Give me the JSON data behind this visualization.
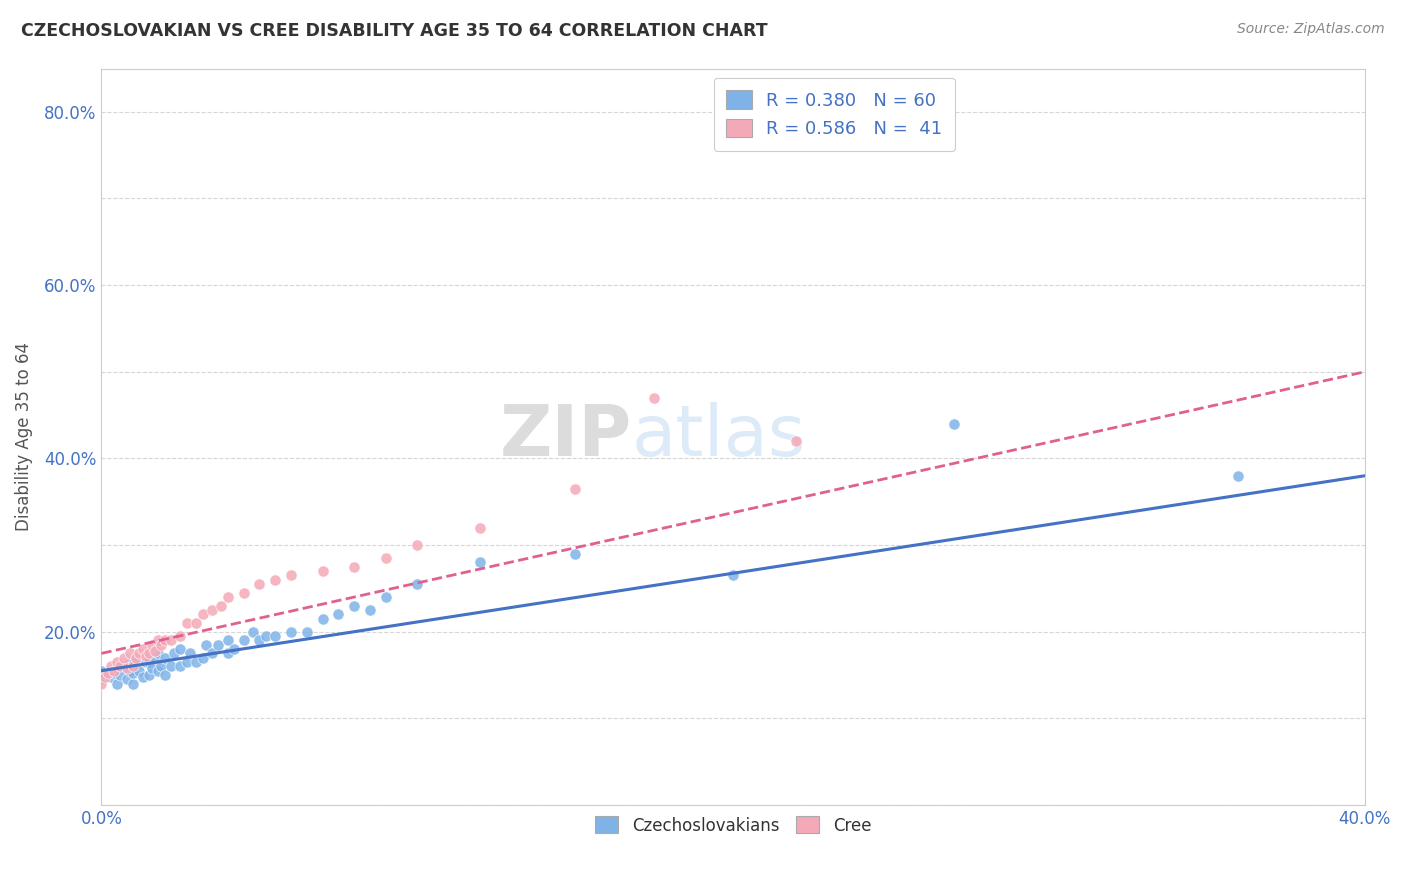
{
  "title": "CZECHOSLOVAKIAN VS CREE DISABILITY AGE 35 TO 64 CORRELATION CHART",
  "source": "Source: ZipAtlas.com",
  "xlabel": "",
  "ylabel": "Disability Age 35 to 64",
  "xlim": [
    0.0,
    0.4
  ],
  "ylim": [
    0.0,
    0.85
  ],
  "xticks": [
    0.0,
    0.05,
    0.1,
    0.15,
    0.2,
    0.25,
    0.3,
    0.35,
    0.4
  ],
  "yticks": [
    0.0,
    0.1,
    0.2,
    0.3,
    0.4,
    0.5,
    0.6,
    0.7,
    0.8
  ],
  "czech_color": "#7fb3e8",
  "cree_color": "#f4a9b8",
  "czech_line_color": "#4472c4",
  "cree_line_color": "#e06090",
  "czech_R": 0.38,
  "czech_N": 60,
  "cree_R": 0.586,
  "cree_N": 41,
  "watermark_zip": "ZIP",
  "watermark_atlas": "atlas",
  "czech_line": [
    0.155,
    0.38
  ],
  "cree_line": [
    0.175,
    0.5
  ],
  "czech_x": [
    0.0,
    0.0,
    0.001,
    0.002,
    0.003,
    0.004,
    0.005,
    0.005,
    0.006,
    0.007,
    0.008,
    0.008,
    0.009,
    0.01,
    0.01,
    0.01,
    0.012,
    0.013,
    0.014,
    0.015,
    0.015,
    0.016,
    0.017,
    0.018,
    0.018,
    0.019,
    0.02,
    0.02,
    0.022,
    0.023,
    0.025,
    0.025,
    0.027,
    0.028,
    0.03,
    0.032,
    0.033,
    0.035,
    0.037,
    0.04,
    0.04,
    0.042,
    0.045,
    0.048,
    0.05,
    0.052,
    0.055,
    0.06,
    0.065,
    0.07,
    0.075,
    0.08,
    0.085,
    0.09,
    0.1,
    0.12,
    0.15,
    0.2,
    0.27,
    0.36
  ],
  "czech_y": [
    0.145,
    0.155,
    0.148,
    0.15,
    0.148,
    0.152,
    0.14,
    0.158,
    0.15,
    0.16,
    0.145,
    0.162,
    0.155,
    0.14,
    0.152,
    0.165,
    0.155,
    0.148,
    0.165,
    0.15,
    0.165,
    0.158,
    0.17,
    0.155,
    0.175,
    0.16,
    0.15,
    0.17,
    0.16,
    0.175,
    0.16,
    0.18,
    0.165,
    0.175,
    0.165,
    0.17,
    0.185,
    0.175,
    0.185,
    0.175,
    0.19,
    0.18,
    0.19,
    0.2,
    0.19,
    0.195,
    0.195,
    0.2,
    0.2,
    0.215,
    0.22,
    0.23,
    0.225,
    0.24,
    0.255,
    0.28,
    0.29,
    0.265,
    0.44,
    0.38
  ],
  "cree_x": [
    0.0,
    0.001,
    0.002,
    0.003,
    0.004,
    0.005,
    0.006,
    0.007,
    0.008,
    0.009,
    0.01,
    0.011,
    0.012,
    0.013,
    0.014,
    0.015,
    0.016,
    0.017,
    0.018,
    0.019,
    0.02,
    0.022,
    0.025,
    0.027,
    0.03,
    0.032,
    0.035,
    0.038,
    0.04,
    0.045,
    0.05,
    0.055,
    0.06,
    0.07,
    0.08,
    0.09,
    0.1,
    0.12,
    0.15,
    0.175,
    0.22
  ],
  "cree_y": [
    0.14,
    0.148,
    0.152,
    0.16,
    0.155,
    0.165,
    0.16,
    0.17,
    0.158,
    0.175,
    0.16,
    0.17,
    0.175,
    0.18,
    0.172,
    0.175,
    0.185,
    0.178,
    0.19,
    0.185,
    0.19,
    0.19,
    0.195,
    0.21,
    0.21,
    0.22,
    0.225,
    0.23,
    0.24,
    0.245,
    0.255,
    0.26,
    0.265,
    0.27,
    0.275,
    0.285,
    0.3,
    0.32,
    0.365,
    0.47,
    0.42
  ]
}
